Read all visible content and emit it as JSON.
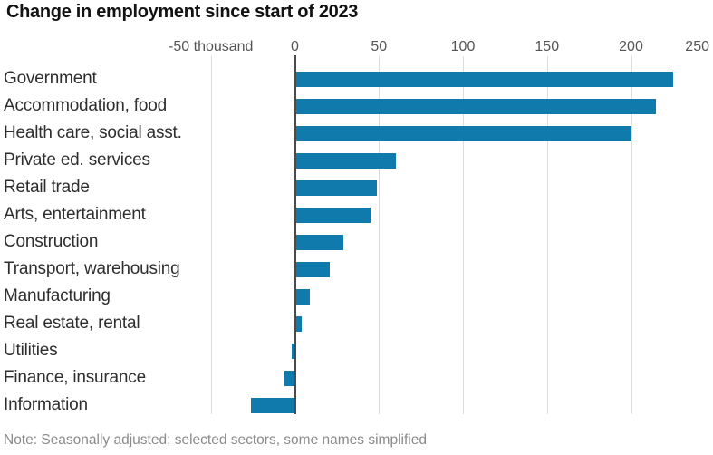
{
  "title": "Change in employment since start of 2023",
  "note": "Note: Seasonally adjusted; selected sectors, some names simplified",
  "chart_data": {
    "type": "bar",
    "orientation": "horizontal",
    "title": "Change in employment since start of 2023",
    "unit": "thousand",
    "categories": [
      "Government",
      "Accommodation, food",
      "Health care, social asst.",
      "Private ed. services",
      "Retail trade",
      "Arts, entertainment",
      "Construction",
      "Transport, warehousing",
      "Manufacturing",
      "Real estate, rental",
      "Utilities",
      "Finance, insurance",
      "Information"
    ],
    "values": [
      225,
      215,
      200,
      60,
      49,
      45,
      29,
      21,
      9,
      4,
      -2,
      -6,
      -26
    ],
    "xlim": [
      -50,
      250
    ],
    "x_ticks": [
      -50,
      0,
      50,
      100,
      150,
      200,
      250
    ],
    "x_tick_labels": [
      "-50 thousand",
      "0",
      "50",
      "100",
      "150",
      "200",
      "250"
    ],
    "grid": true,
    "legend": "none",
    "note": "Note: Seasonally adjusted; selected sectors, some names simplified",
    "bar_color": "#0f7aab",
    "zero_line_color": "#4a4a4a",
    "gridline_color": "#dcdcdc"
  }
}
